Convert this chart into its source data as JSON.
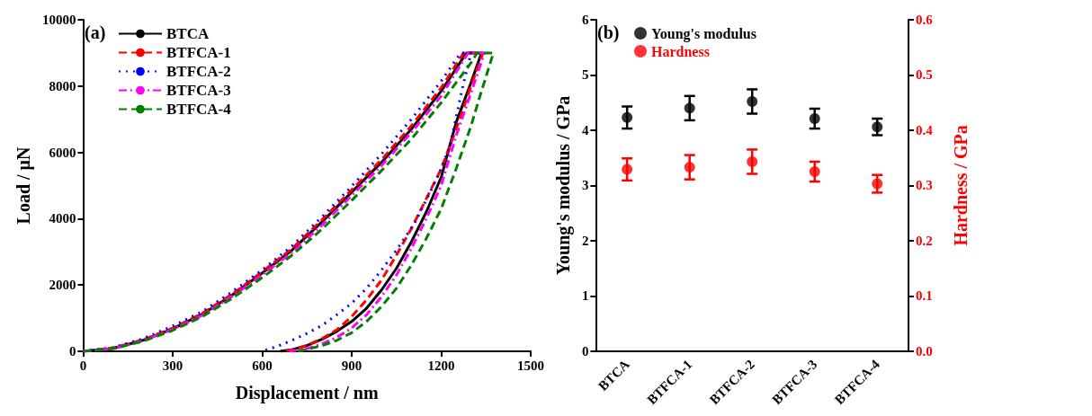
{
  "chart_data": [
    {
      "type": "line",
      "xlabel": "Displacement / nm",
      "ylabel": "Load / μN",
      "annotations": [
        "(a)"
      ],
      "xlim": [
        0,
        1500
      ],
      "xticks": [
        0,
        300,
        600,
        900,
        1200,
        1500
      ],
      "ylim": [
        0,
        10000
      ],
      "yticks": [
        0,
        2000,
        4000,
        6000,
        8000,
        10000
      ],
      "legend": "top left",
      "grid": false,
      "marker": "none",
      "series": [
        {
          "name": "BTCA",
          "color": "#000000",
          "line_style": "solid",
          "x": [
            0,
            100,
            200,
            300,
            400,
            500,
            600,
            700,
            800,
            900,
            1000,
            1100,
            1200,
            1285,
            1335,
            1300,
            1250,
            1200,
            1150,
            1100,
            1050,
            1000,
            950,
            900,
            850,
            800,
            750,
            700,
            660
          ],
          "values": [
            0,
            90,
            330,
            680,
            1120,
            1700,
            2360,
            3050,
            3900,
            4800,
            5700,
            6700,
            7850,
            9000,
            9000,
            8100,
            6900,
            5250,
            4200,
            3300,
            2500,
            1850,
            1300,
            900,
            600,
            360,
            170,
            50,
            0
          ]
        },
        {
          "name": "BTFCA-1",
          "color": "#ff0000",
          "line_style": "dashed",
          "x": [
            0,
            100,
            200,
            300,
            400,
            500,
            600,
            700,
            800,
            900,
            1000,
            1100,
            1200,
            1275,
            1340,
            1300,
            1250,
            1200,
            1150,
            1100,
            1050,
            1000,
            950,
            900,
            850,
            800,
            750,
            700,
            670
          ],
          "values": [
            0,
            100,
            350,
            700,
            1150,
            1730,
            2400,
            3100,
            3960,
            4870,
            5780,
            6800,
            7950,
            9000,
            9000,
            8000,
            6700,
            5500,
            4600,
            3700,
            2900,
            2150,
            1550,
            1050,
            650,
            380,
            180,
            50,
            0
          ]
        },
        {
          "name": "BTFCA-2",
          "color": "#0000ff",
          "line_style": "dotted",
          "x": [
            0,
            100,
            200,
            300,
            400,
            500,
            600,
            700,
            800,
            900,
            1000,
            1100,
            1200,
            1265,
            1300,
            1270,
            1230,
            1195,
            1160,
            1110,
            1050,
            1000,
            950,
            900,
            850,
            800,
            750,
            700,
            650,
            600
          ],
          "values": [
            0,
            110,
            380,
            760,
            1200,
            1800,
            2450,
            3180,
            4050,
            4980,
            5950,
            7000,
            8150,
            9000,
            9000,
            7900,
            6200,
            5400,
            4750,
            3850,
            3050,
            2450,
            1900,
            1450,
            1100,
            780,
            540,
            330,
            150,
            0
          ]
        },
        {
          "name": "BTFCA-3",
          "color": "#ff00ff",
          "line_style": "dashdot",
          "x": [
            0,
            100,
            200,
            300,
            400,
            500,
            600,
            700,
            800,
            900,
            1000,
            1100,
            1200,
            1290,
            1345,
            1300,
            1250,
            1200,
            1150,
            1100,
            1050,
            1000,
            950,
            900,
            850,
            800,
            750,
            700,
            690
          ],
          "values": [
            0,
            80,
            320,
            660,
            1090,
            1660,
            2300,
            2980,
            3800,
            4700,
            5600,
            6600,
            7700,
            9000,
            9000,
            7800,
            6500,
            5000,
            4000,
            3100,
            2300,
            1650,
            1100,
            700,
            420,
            220,
            80,
            10,
            0
          ]
        },
        {
          "name": "BTFCA-4",
          "color": "#008000",
          "line_style": "dashed",
          "x": [
            0,
            100,
            200,
            300,
            400,
            500,
            600,
            700,
            800,
            900,
            1000,
            1100,
            1200,
            1300,
            1320,
            1375,
            1330,
            1300,
            1250,
            1200,
            1150,
            1100,
            1050,
            1000,
            950,
            900,
            850,
            800,
            750,
            720
          ],
          "values": [
            0,
            80,
            300,
            630,
            1050,
            1600,
            2220,
            2900,
            3680,
            4550,
            5450,
            6400,
            7500,
            8700,
            9000,
            9000,
            7700,
            6800,
            5500,
            4300,
            3400,
            2600,
            1900,
            1350,
            900,
            560,
            330,
            170,
            60,
            0
          ]
        }
      ]
    },
    {
      "type": "scatter",
      "ylabel": "Young's modulus / GPa",
      "y2label": "Hardness / GPa",
      "annotations": [
        "(b)"
      ],
      "categories": [
        "BTCA",
        "BTFCA-1",
        "BTFCA-2",
        "BTFCA-3",
        "BTFCA-4"
      ],
      "ylim": [
        0,
        6
      ],
      "yticks": [
        0,
        1,
        2,
        3,
        4,
        5,
        6
      ],
      "y2lim": [
        0,
        0.6
      ],
      "y2ticks": [
        {
          "value": 0,
          "label": "0.0"
        },
        0.1,
        0.2,
        0.3,
        0.4,
        0.5,
        0.6
      ],
      "legend": "top left",
      "grid": false,
      "marker": "circle",
      "series": [
        {
          "name": "Young's modulus",
          "color": "#000000",
          "values": [
            4.23,
            4.4,
            4.52,
            4.21,
            4.06
          ],
          "errors": [
            0.2,
            0.22,
            0.22,
            0.18,
            0.15
          ]
        },
        {
          "name": "Hardness",
          "color": "#ff0000",
          "axis": "y2",
          "values": [
            0.329,
            0.333,
            0.343,
            0.325,
            0.303
          ],
          "errors": [
            0.02,
            0.022,
            0.022,
            0.018,
            0.016
          ]
        }
      ]
    }
  ]
}
